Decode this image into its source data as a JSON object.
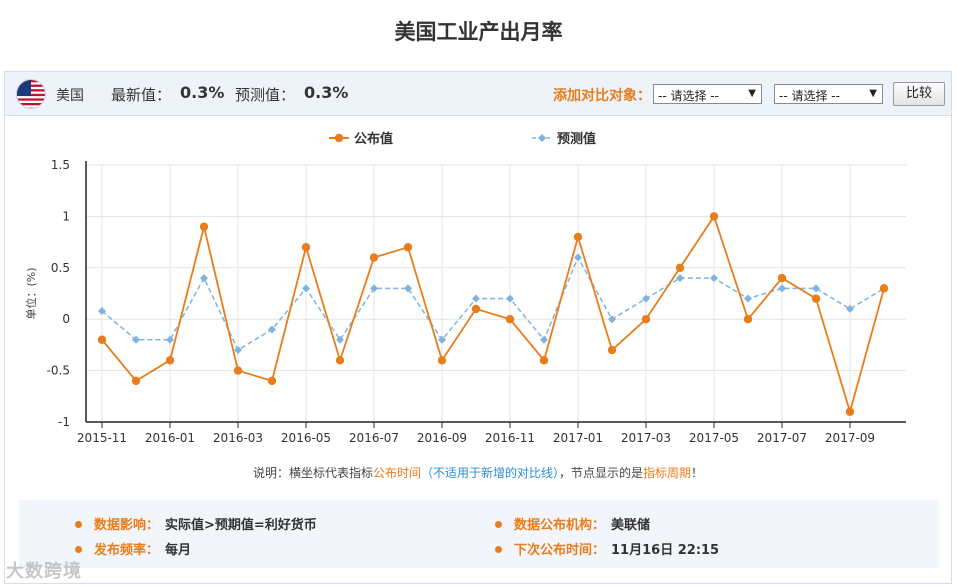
{
  "page": {
    "title": "美国工业产出月率"
  },
  "header": {
    "country": "美国",
    "latest_label": "最新值：",
    "latest_value": "0.3%",
    "forecast_label": "预测值：",
    "forecast_value": "0.3%",
    "compare_label": "添加对比对象：",
    "select1": "-- 请选择 --",
    "select2": "-- 请选择 --",
    "compare_button": "比较"
  },
  "note": {
    "part1": "说明：横坐标代表指标",
    "part2": "公布时间",
    "part3": "（不适用于新增的对比线）",
    "part4": "，节点显示的是",
    "part5": "指标周期",
    "part6": "！"
  },
  "info": {
    "impact_label": "数据影响：",
    "impact_value": "实际值>预期值=利好货币",
    "org_label": "数据公布机构：",
    "org_value": "美联储",
    "freq_label": "发布频率：",
    "freq_value": "每月",
    "next_label": "下次公布时间：",
    "next_value": "11月16日 22:15"
  },
  "watermark": "大数跨境",
  "colors": {
    "actual": "#e87d1b",
    "forecast": "#7fb4e0",
    "accent": "#e87d1b"
  },
  "chart_data": {
    "type": "line",
    "ylabel": "单位：(%)",
    "ylim": [
      -1,
      1.5
    ],
    "yticks": [
      "1.5",
      "1",
      "0.5",
      "0",
      "-0.5",
      "-1"
    ],
    "ytick_values": [
      1.5,
      1,
      0.5,
      0,
      -0.5,
      -1
    ],
    "xtick_labels": [
      "2015-11",
      "2016-01",
      "2016-03",
      "2016-05",
      "2016-07",
      "2016-09",
      "2016-11",
      "2017-01",
      "2017-03",
      "2017-05",
      "2017-07",
      "2017-09"
    ],
    "legend": [
      "公布值",
      "预测值"
    ],
    "legend_position": "top-center",
    "grid": true,
    "x": [
      "2015-11",
      "2015-12",
      "2016-01",
      "2016-02",
      "2016-03",
      "2016-04",
      "2016-05",
      "2016-06",
      "2016-07",
      "2016-08",
      "2016-09",
      "2016-10",
      "2016-11",
      "2016-12",
      "2017-01",
      "2017-02",
      "2017-03",
      "2017-04",
      "2017-05",
      "2017-06",
      "2017-07",
      "2017-08",
      "2017-09",
      "2017-10"
    ],
    "series": [
      {
        "name": "公布值",
        "values": [
          -0.2,
          -0.6,
          -0.4,
          0.9,
          -0.5,
          -0.6,
          0.7,
          -0.4,
          0.6,
          0.7,
          -0.4,
          0.1,
          0.0,
          -0.4,
          0.8,
          -0.3,
          0.0,
          0.5,
          1.0,
          0.0,
          0.4,
          0.2,
          -0.9,
          0.3
        ]
      },
      {
        "name": "预测值",
        "values": [
          0.08,
          -0.2,
          -0.2,
          0.4,
          -0.3,
          -0.1,
          0.3,
          -0.2,
          0.3,
          0.3,
          -0.2,
          0.2,
          0.2,
          -0.2,
          0.6,
          0.0,
          0.2,
          0.4,
          0.4,
          0.2,
          0.3,
          0.3,
          0.1,
          0.3
        ]
      }
    ]
  }
}
